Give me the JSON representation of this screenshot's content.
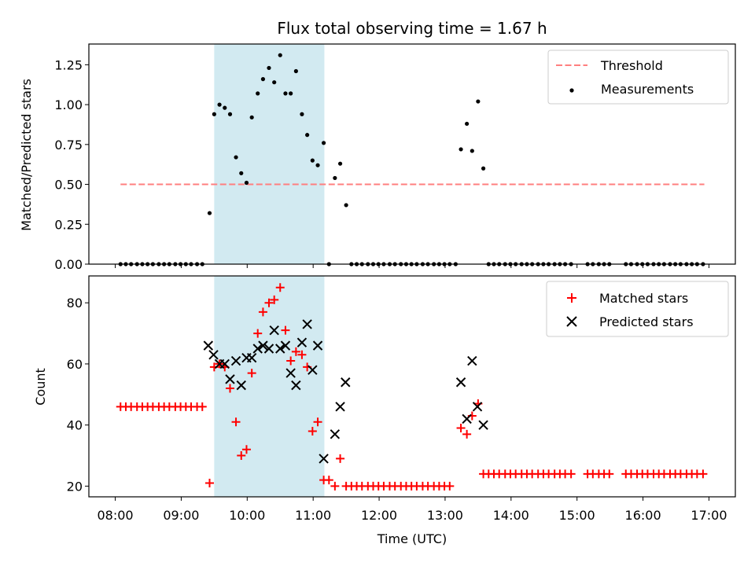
{
  "chart_data": [
    {
      "type": "scatter",
      "title": "Flux total observing time = 1.67 h",
      "xlabel": "",
      "ylabel": "Matched/Predicted stars",
      "xlim": [
        7.6,
        17.4
      ],
      "ylim": [
        0,
        1.38
      ],
      "xticks": [
        8,
        9,
        10,
        11,
        12,
        13,
        14,
        15,
        16,
        17
      ],
      "yticks": [
        0,
        0.25,
        0.5,
        0.75,
        1.0,
        1.25
      ],
      "ytick_labels": [
        "0.00",
        "0.25",
        "0.50",
        "0.75",
        "1.00",
        "1.25"
      ],
      "shaded_span": {
        "x0": 9.5,
        "x1": 11.17,
        "color": "#add8e6"
      },
      "threshold": {
        "name": "Threshold",
        "value": 0.5,
        "x0": 8.08,
        "x1": 16.93,
        "color": "#ff7f7f"
      },
      "legend": {
        "position": "top-right",
        "entries": [
          "Threshold",
          "Measurements"
        ]
      },
      "series": [
        {
          "name": "Measurements",
          "color": "#000000",
          "x": [
            8.08,
            8.16,
            8.24,
            8.33,
            8.41,
            8.49,
            8.57,
            8.66,
            8.74,
            8.82,
            8.91,
            8.99,
            9.07,
            9.15,
            9.24,
            9.32,
            9.43,
            9.5,
            9.58,
            9.66,
            9.74,
            9.83,
            9.91,
            9.99,
            10.07,
            10.16,
            10.24,
            10.33,
            10.41,
            10.5,
            10.58,
            10.66,
            10.74,
            10.83,
            10.91,
            10.99,
            11.07,
            11.16,
            11.24,
            11.33,
            11.41,
            11.5,
            11.58,
            11.66,
            11.74,
            11.83,
            11.91,
            11.99,
            12.07,
            12.16,
            12.24,
            12.33,
            12.41,
            12.49,
            12.57,
            12.66,
            12.74,
            12.83,
            12.91,
            12.99,
            13.07,
            13.16,
            13.24,
            13.33,
            13.41,
            13.5,
            13.58,
            13.66,
            13.74,
            13.82,
            13.91,
            13.99,
            14.07,
            14.16,
            14.24,
            14.32,
            14.41,
            14.49,
            14.57,
            14.66,
            14.74,
            14.82,
            14.91,
            15.16,
            15.24,
            15.33,
            15.41,
            15.49,
            15.74,
            15.82,
            15.91,
            15.99,
            16.07,
            16.16,
            16.24,
            16.32,
            16.41,
            16.49,
            16.57,
            16.66,
            16.74,
            16.82,
            16.91
          ],
          "y": [
            0,
            0,
            0,
            0,
            0,
            0,
            0,
            0,
            0,
            0,
            0,
            0,
            0,
            0,
            0,
            0,
            0.32,
            0.94,
            1.0,
            0.98,
            0.94,
            0.67,
            0.57,
            0.51,
            0.92,
            1.07,
            1.16,
            1.23,
            1.14,
            1.31,
            1.07,
            1.07,
            1.21,
            0.94,
            0.81,
            0.65,
            0.62,
            0.76,
            0,
            0.54,
            0.63,
            0.37,
            0,
            0,
            0,
            0,
            0,
            0,
            0,
            0,
            0,
            0,
            0,
            0,
            0,
            0,
            0,
            0,
            0,
            0,
            0,
            0,
            0.72,
            0.88,
            0.71,
            1.02,
            0.6,
            0,
            0,
            0,
            0,
            0,
            0,
            0,
            0,
            0,
            0,
            0,
            0,
            0,
            0,
            0,
            0,
            0,
            0,
            0,
            0,
            0,
            0,
            0,
            0,
            0,
            0,
            0,
            0,
            0,
            0,
            0,
            0,
            0,
            0,
            0,
            0
          ]
        }
      ]
    },
    {
      "type": "scatter",
      "title": "",
      "xlabel": "Time (UTC)",
      "ylabel": "Count",
      "xlim": [
        7.6,
        17.4
      ],
      "ylim": [
        16.5,
        88.8
      ],
      "xticks": [
        8,
        9,
        10,
        11,
        12,
        13,
        14,
        15,
        16,
        17
      ],
      "xtick_labels": [
        "08:00",
        "09:00",
        "10:00",
        "11:00",
        "12:00",
        "13:00",
        "14:00",
        "15:00",
        "16:00",
        "17:00"
      ],
      "yticks": [
        20,
        40,
        60,
        80
      ],
      "ytick_labels": [
        "20",
        "40",
        "60",
        "80"
      ],
      "shaded_span": {
        "x0": 9.5,
        "x1": 11.17,
        "color": "#add8e6"
      },
      "legend": {
        "position": "top-right",
        "entries": [
          "Matched stars",
          "Predicted stars"
        ]
      },
      "series": [
        {
          "name": "Matched stars",
          "marker": "plus",
          "color": "#ff0000",
          "x": [
            8.08,
            8.16,
            8.24,
            8.33,
            8.41,
            8.49,
            8.57,
            8.66,
            8.74,
            8.82,
            8.91,
            8.99,
            9.07,
            9.15,
            9.24,
            9.32,
            9.43,
            9.5,
            9.58,
            9.66,
            9.74,
            9.83,
            9.91,
            9.99,
            10.07,
            10.16,
            10.24,
            10.33,
            10.41,
            10.5,
            10.58,
            10.66,
            10.74,
            10.83,
            10.91,
            10.99,
            11.07,
            11.16,
            11.24,
            11.33,
            11.41,
            11.5,
            11.58,
            11.66,
            11.74,
            11.83,
            11.91,
            11.99,
            12.07,
            12.16,
            12.24,
            12.33,
            12.41,
            12.49,
            12.57,
            12.66,
            12.74,
            12.83,
            12.91,
            12.99,
            13.07,
            13.24,
            13.33,
            13.41,
            13.5,
            13.58,
            13.66,
            13.74,
            13.82,
            13.91,
            13.99,
            14.07,
            14.16,
            14.24,
            14.32,
            14.41,
            14.49,
            14.57,
            14.66,
            14.74,
            14.82,
            14.91,
            15.16,
            15.24,
            15.33,
            15.41,
            15.49,
            15.74,
            15.82,
            15.91,
            15.99,
            16.07,
            16.16,
            16.24,
            16.32,
            16.41,
            16.49,
            16.57,
            16.66,
            16.74,
            16.82,
            16.91
          ],
          "y": [
            46,
            46,
            46,
            46,
            46,
            46,
            46,
            46,
            46,
            46,
            46,
            46,
            46,
            46,
            46,
            46,
            21,
            59,
            60,
            59,
            52,
            41,
            30,
            32,
            57,
            70,
            77,
            80,
            81,
            85,
            71,
            61,
            64,
            63,
            59,
            38,
            41,
            22,
            22,
            20,
            29,
            20,
            20,
            20,
            20,
            20,
            20,
            20,
            20,
            20,
            20,
            20,
            20,
            20,
            20,
            20,
            20,
            20,
            20,
            20,
            20,
            39,
            37,
            43,
            47,
            24,
            24,
            24,
            24,
            24,
            24,
            24,
            24,
            24,
            24,
            24,
            24,
            24,
            24,
            24,
            24,
            24,
            24,
            24,
            24,
            24,
            24,
            24,
            24,
            24,
            24,
            24,
            24,
            24,
            24,
            24,
            24,
            24,
            24,
            24,
            24,
            24
          ]
        },
        {
          "name": "Predicted stars",
          "marker": "x",
          "color": "#000000",
          "x": [
            9.41,
            9.49,
            9.58,
            9.66,
            9.74,
            9.83,
            9.91,
            9.99,
            10.07,
            10.16,
            10.24,
            10.33,
            10.41,
            10.5,
            10.58,
            10.66,
            10.74,
            10.83,
            10.91,
            10.99,
            11.07,
            11.16,
            11.33,
            11.41,
            11.49,
            13.24,
            13.33,
            13.41,
            13.49,
            13.58
          ],
          "y": [
            66,
            63,
            60,
            60,
            55,
            61,
            53,
            62,
            62,
            65,
            66,
            65,
            71,
            65,
            66,
            57,
            53,
            67,
            73,
            58,
            66,
            29,
            37,
            46,
            54,
            54,
            42,
            61,
            46,
            40
          ]
        }
      ]
    }
  ]
}
